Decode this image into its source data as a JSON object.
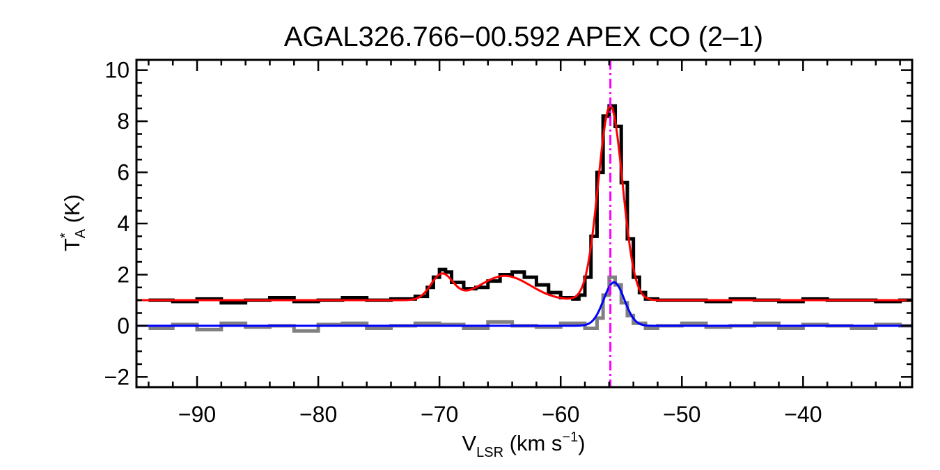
{
  "chart_data": {
    "type": "line",
    "title": "AGAL326.766−00.592  APEX CO (2–1)",
    "xlabel": {
      "main": "V",
      "sub": "LSR",
      "rest": " (km s",
      "sup": "−1",
      "close": ")"
    },
    "ylabel": {
      "main": "T",
      "sup": "*",
      "sub": "A",
      "rest": " (K)"
    },
    "xlim": [
      -95.0,
      -31.0
    ],
    "ylim": [
      -2.4,
      10.4
    ],
    "x_ticks": [
      -90,
      -80,
      -70,
      -60,
      -50,
      -40
    ],
    "x_tick_labels": [
      "−90",
      "−80",
      "−70",
      "−60",
      "−50",
      "−40"
    ],
    "y_ticks": [
      -2,
      0,
      2,
      4,
      6,
      8,
      10
    ],
    "y_tick_labels": [
      "−2",
      "0",
      "2",
      "4",
      "6",
      "8",
      "10"
    ],
    "grid": false,
    "marker_line": {
      "x": -55.9,
      "color": "#ff00ff",
      "style": "dash-dot"
    },
    "series": [
      {
        "kind": "spectrum",
        "color": "#000000",
        "offset_K": 1.0,
        "x": [
          -94,
          -92,
          -90,
          -88,
          -86,
          -84,
          -82,
          -80,
          -78,
          -76,
          -74,
          -72,
          -71,
          -70.5,
          -70,
          -69.5,
          -69,
          -68,
          -67,
          -66,
          -65,
          -64,
          -63,
          -62,
          -61,
          -60,
          -59,
          -58.5,
          -58,
          -57.5,
          -57,
          -56.5,
          -56,
          -55.5,
          -55,
          -54.5,
          -54,
          -53.5,
          -53,
          -52,
          -50,
          -48,
          -46,
          -44,
          -42,
          -40,
          -38,
          -36,
          -34,
          -32
        ],
        "y": [
          1.0,
          0.95,
          1.05,
          0.9,
          1.0,
          1.1,
          0.95,
          1.0,
          1.1,
          1.0,
          1.05,
          1.15,
          1.5,
          1.9,
          2.2,
          2.1,
          1.7,
          1.45,
          1.5,
          1.75,
          2.0,
          2.1,
          1.9,
          1.6,
          1.3,
          1.1,
          1.05,
          1.2,
          1.9,
          3.5,
          6.0,
          8.2,
          8.6,
          7.8,
          5.6,
          3.4,
          1.9,
          1.3,
          1.05,
          1.0,
          1.0,
          0.95,
          1.05,
          1.0,
          0.95,
          1.05,
          1.0,
          1.0,
          0.95,
          1.0
        ]
      },
      {
        "kind": "fit",
        "color": "#ff0000",
        "baseline": 1.0,
        "components": [
          {
            "center": -69.8,
            "amplitude": 1.0,
            "sigma": 0.9
          },
          {
            "center": -64.6,
            "amplitude": 0.95,
            "sigma": 2.1
          },
          {
            "center": -55.9,
            "amplitude": 7.6,
            "sigma": 1.0
          }
        ]
      },
      {
        "kind": "spectrum",
        "color": "#808080",
        "offset_K": 0.0,
        "x": [
          -94,
          -92,
          -90,
          -88,
          -86,
          -84,
          -82,
          -80,
          -78,
          -76,
          -74,
          -72,
          -70,
          -68,
          -66,
          -64,
          -62,
          -60,
          -58,
          -57,
          -56.5,
          -56,
          -55.5,
          -55,
          -54.5,
          -54,
          -53,
          -52,
          -50,
          -48,
          -46,
          -44,
          -42,
          -40,
          -38,
          -36,
          -34,
          -32
        ],
        "y": [
          -0.1,
          0.05,
          -0.15,
          0.1,
          -0.05,
          0.0,
          -0.2,
          0.05,
          0.1,
          -0.1,
          0.0,
          0.1,
          0.05,
          -0.1,
          0.15,
          0.0,
          -0.05,
          0.1,
          -0.1,
          0.3,
          1.2,
          1.9,
          1.6,
          0.9,
          0.4,
          0.1,
          -0.1,
          0.0,
          0.1,
          -0.05,
          0.0,
          0.1,
          -0.1,
          0.05,
          0.0,
          -0.1,
          0.05,
          0.0
        ]
      },
      {
        "kind": "fit",
        "color": "#0000ff",
        "baseline": 0.0,
        "components": [
          {
            "center": -55.6,
            "amplitude": 1.7,
            "sigma": 0.85
          }
        ]
      }
    ]
  }
}
